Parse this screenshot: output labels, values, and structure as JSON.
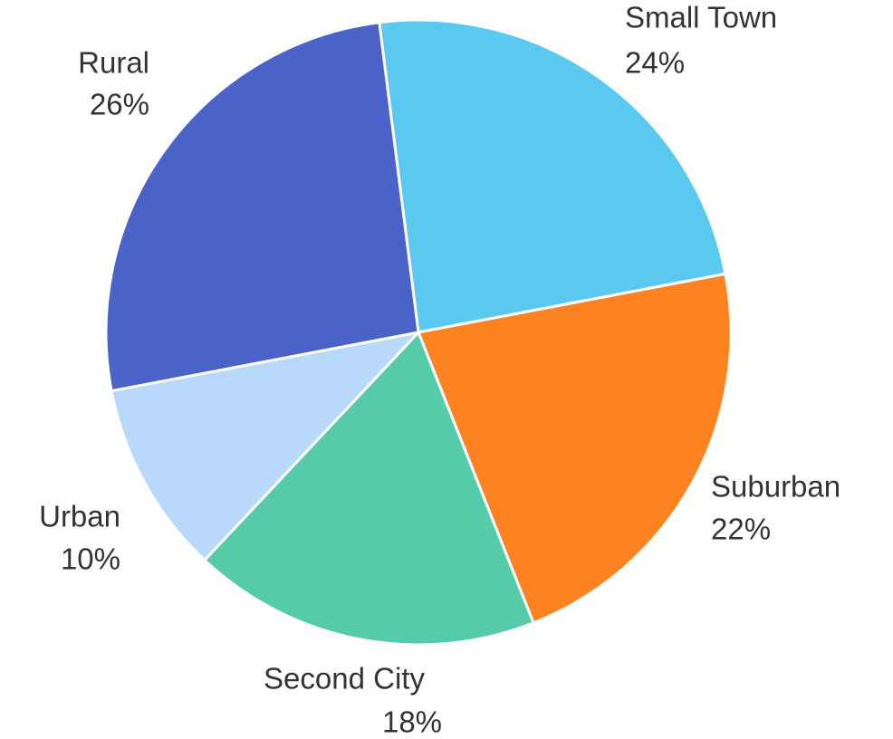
{
  "chart_data": {
    "type": "pie",
    "categories": [
      "Small Town",
      "Suburban",
      "Second City",
      "Urban",
      "Rural"
    ],
    "values": [
      24,
      22,
      18,
      10,
      26
    ],
    "value_labels": [
      "24%",
      "22%",
      "18%",
      "10%",
      "26%"
    ],
    "colors": [
      "#5bc8f0",
      "#fd8222",
      "#55cba9",
      "#b8d9fa",
      "#4a63c8"
    ]
  }
}
